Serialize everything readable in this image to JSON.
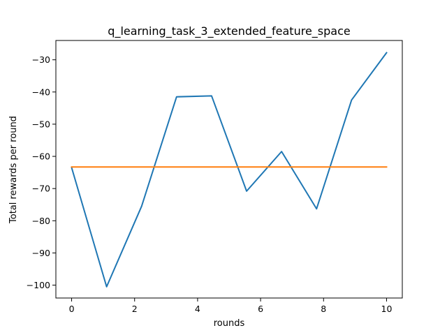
{
  "chart_data": {
    "type": "line",
    "title": "q_learning_task_3_extended_feature_space",
    "xlabel": "rounds",
    "ylabel": "Total rewards per round",
    "xlim": [
      -0.5,
      10.5
    ],
    "ylim": [
      -104.0,
      -24.0
    ],
    "xticks": [
      0,
      2,
      4,
      6,
      8,
      10
    ],
    "xtick_labels": [
      "0",
      "2",
      "4",
      "6",
      "8",
      "10"
    ],
    "yticks": [
      -100,
      -90,
      -80,
      -70,
      -60,
      -50,
      -40,
      -30
    ],
    "ytick_labels": [
      "−100",
      "−90",
      "−80",
      "−70",
      "−60",
      "−50",
      "−40",
      "−30"
    ],
    "grid": false,
    "legend": "none",
    "series": [
      {
        "color": "#1f77b4",
        "x": [
          0,
          1.111,
          2.222,
          3.333,
          4.444,
          5.556,
          6.667,
          7.778,
          8.889,
          10
        ],
        "y": [
          -63.5,
          -100.5,
          -75.5,
          -41.5,
          -41.2,
          -70.8,
          -58.5,
          -76.3,
          -42.5,
          -27.8
        ]
      },
      {
        "color": "#ff7f0e",
        "x": [
          0,
          10
        ],
        "y": [
          -63.3,
          -63.3
        ]
      }
    ]
  }
}
